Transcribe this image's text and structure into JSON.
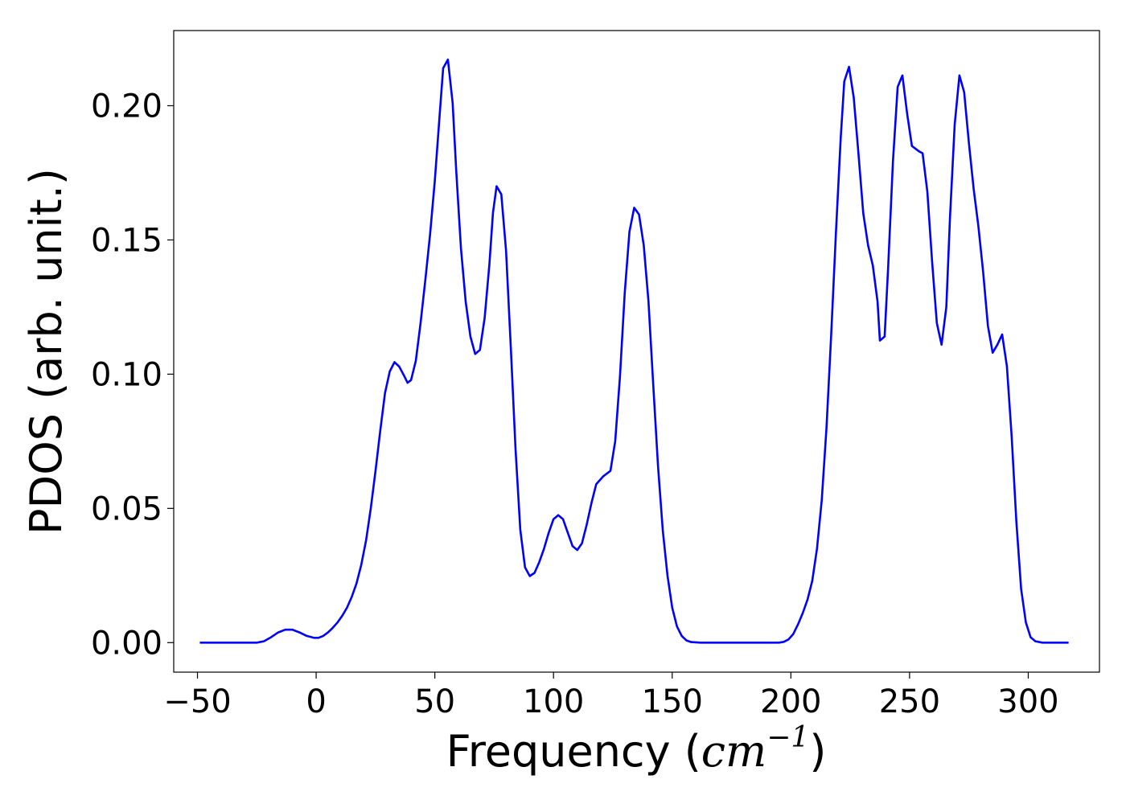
{
  "chart_data": {
    "type": "line",
    "title": "",
    "xlabel": {
      "prefix": "Frequency (",
      "unit": "cm",
      "exponent": "−1",
      "suffix": ")"
    },
    "ylabel": "PDOS (arb. unit.)",
    "xlim": [
      -60,
      330
    ],
    "ylim": [
      -0.011,
      0.228
    ],
    "xticks": [
      -50,
      0,
      50,
      100,
      150,
      200,
      250,
      300
    ],
    "xtick_labels": [
      "−50",
      "0",
      "50",
      "100",
      "150",
      "200",
      "250",
      "300"
    ],
    "yticks": [
      0.0,
      0.05,
      0.1,
      0.15,
      0.2
    ],
    "ytick_labels": [
      "0.00",
      "0.05",
      "0.10",
      "0.15",
      "0.20"
    ],
    "grid": false,
    "legend": "none",
    "series": [
      {
        "color": "#0000ff",
        "points": [
          [
            -49,
            0.0
          ],
          [
            -40,
            0.0
          ],
          [
            -30,
            0.0
          ],
          [
            -25,
            0.0
          ],
          [
            -22,
            0.0005
          ],
          [
            -19,
            0.002
          ],
          [
            -16,
            0.0038
          ],
          [
            -13,
            0.0048
          ],
          [
            -10,
            0.0048
          ],
          [
            -7,
            0.0038
          ],
          [
            -4,
            0.0025
          ],
          [
            -1,
            0.0018
          ],
          [
            1,
            0.0018
          ],
          [
            3,
            0.0025
          ],
          [
            5,
            0.0038
          ],
          [
            7,
            0.0055
          ],
          [
            9,
            0.0075
          ],
          [
            11,
            0.01
          ],
          [
            13,
            0.013
          ],
          [
            15,
            0.017
          ],
          [
            17,
            0.022
          ],
          [
            19,
            0.029
          ],
          [
            21,
            0.038
          ],
          [
            23,
            0.05
          ],
          [
            25,
            0.064
          ],
          [
            27,
            0.079
          ],
          [
            29,
            0.093
          ],
          [
            31,
            0.101
          ],
          [
            33,
            0.1045
          ],
          [
            35,
            0.1028
          ],
          [
            37,
            0.0995
          ],
          [
            38.5,
            0.0968
          ],
          [
            40,
            0.0978
          ],
          [
            42,
            0.105
          ],
          [
            44,
            0.119
          ],
          [
            46,
            0.135
          ],
          [
            48,
            0.152
          ],
          [
            50,
            0.172
          ],
          [
            52,
            0.196
          ],
          [
            53.5,
            0.214
          ],
          [
            55.5,
            0.2172
          ],
          [
            57.5,
            0.201
          ],
          [
            59,
            0.176
          ],
          [
            61,
            0.147
          ],
          [
            63,
            0.127
          ],
          [
            65,
            0.114
          ],
          [
            67,
            0.1075
          ],
          [
            69,
            0.109
          ],
          [
            71,
            0.121
          ],
          [
            73,
            0.141
          ],
          [
            74.5,
            0.16
          ],
          [
            76,
            0.17
          ],
          [
            78,
            0.167
          ],
          [
            80,
            0.146
          ],
          [
            82,
            0.11
          ],
          [
            84,
            0.072
          ],
          [
            86,
            0.042
          ],
          [
            88,
            0.028
          ],
          [
            90,
            0.0248
          ],
          [
            92,
            0.026
          ],
          [
            94,
            0.03
          ],
          [
            96,
            0.035
          ],
          [
            98,
            0.041
          ],
          [
            100,
            0.046
          ],
          [
            102,
            0.0475
          ],
          [
            104,
            0.046
          ],
          [
            106,
            0.041
          ],
          [
            108,
            0.036
          ],
          [
            110,
            0.0345
          ],
          [
            112,
            0.037
          ],
          [
            114,
            0.044
          ],
          [
            116,
            0.052
          ],
          [
            118,
            0.059
          ],
          [
            121,
            0.062
          ],
          [
            124,
            0.064
          ],
          [
            126,
            0.075
          ],
          [
            128,
            0.099
          ],
          [
            130,
            0.13
          ],
          [
            132,
            0.153
          ],
          [
            134,
            0.162
          ],
          [
            136,
            0.1595
          ],
          [
            138,
            0.148
          ],
          [
            140,
            0.127
          ],
          [
            142,
            0.096
          ],
          [
            144,
            0.066
          ],
          [
            146,
            0.042
          ],
          [
            148,
            0.025
          ],
          [
            150,
            0.013
          ],
          [
            152,
            0.006
          ],
          [
            154,
            0.0025
          ],
          [
            156,
            0.0008
          ],
          [
            158,
            0.0002
          ],
          [
            162,
            0.0
          ],
          [
            170,
            0.0
          ],
          [
            180,
            0.0
          ],
          [
            190,
            0.0
          ],
          [
            195,
            0.0
          ],
          [
            197,
            0.0003
          ],
          [
            199,
            0.0012
          ],
          [
            201,
            0.0032
          ],
          [
            203,
            0.0068
          ],
          [
            205,
            0.011
          ],
          [
            207,
            0.016
          ],
          [
            209,
            0.023
          ],
          [
            211,
            0.035
          ],
          [
            213,
            0.053
          ],
          [
            215,
            0.08
          ],
          [
            217,
            0.115
          ],
          [
            219,
            0.153
          ],
          [
            221,
            0.188
          ],
          [
            222.5,
            0.209
          ],
          [
            224.5,
            0.2145
          ],
          [
            226.5,
            0.203
          ],
          [
            228.5,
            0.182
          ],
          [
            230.5,
            0.16
          ],
          [
            232.5,
            0.148
          ],
          [
            234.5,
            0.1405
          ],
          [
            236.5,
            0.127
          ],
          [
            237.5,
            0.1125
          ],
          [
            239.5,
            0.114
          ],
          [
            241,
            0.14
          ],
          [
            243,
            0.179
          ],
          [
            245,
            0.207
          ],
          [
            247,
            0.2113
          ],
          [
            249,
            0.197
          ],
          [
            251,
            0.185
          ],
          [
            254,
            0.183
          ],
          [
            255.5,
            0.1823
          ],
          [
            257.5,
            0.168
          ],
          [
            259.5,
            0.142
          ],
          [
            261.5,
            0.119
          ],
          [
            263.5,
            0.111
          ],
          [
            265.5,
            0.125
          ],
          [
            267,
            0.158
          ],
          [
            269,
            0.193
          ],
          [
            271,
            0.2113
          ],
          [
            273,
            0.205
          ],
          [
            275,
            0.186
          ],
          [
            277,
            0.169
          ],
          [
            279,
            0.155
          ],
          [
            281,
            0.138
          ],
          [
            283,
            0.118
          ],
          [
            285,
            0.108
          ],
          [
            287,
            0.111
          ],
          [
            289,
            0.1148
          ],
          [
            291,
            0.103
          ],
          [
            293,
            0.077
          ],
          [
            295,
            0.045
          ],
          [
            297,
            0.02
          ],
          [
            299,
            0.0075
          ],
          [
            301,
            0.002
          ],
          [
            303,
            0.0005
          ],
          [
            306,
            0.0
          ],
          [
            315,
            0.0
          ],
          [
            317,
            0.0
          ]
        ]
      }
    ]
  }
}
